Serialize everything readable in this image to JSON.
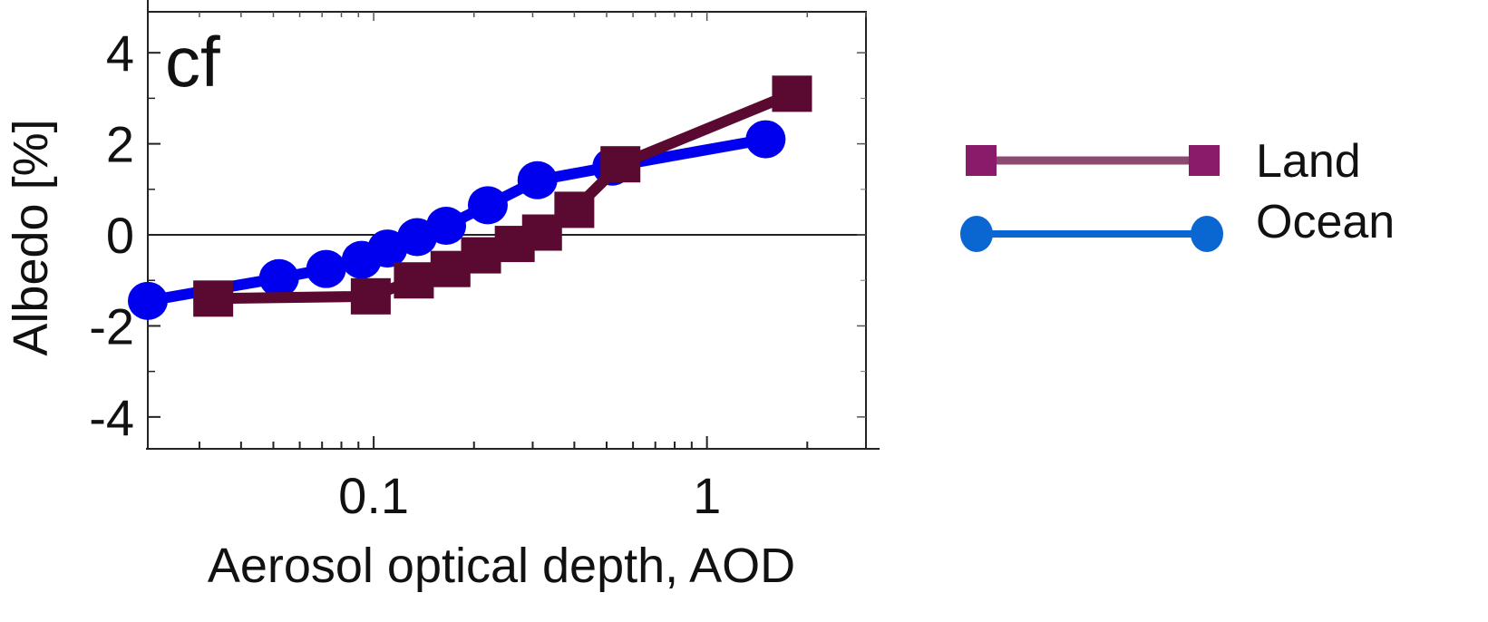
{
  "chart_data": {
    "type": "line",
    "panel_label": "cf",
    "xlabel": "Aerosol optical depth, AOD",
    "ylabel": "Albedo [%]",
    "xscale": "log",
    "xlim": [
      0.021,
      3
    ],
    "ylim": [
      -4.7,
      4.9
    ],
    "x_ticks": [
      {
        "value": 0.1,
        "label": "0.1"
      },
      {
        "value": 1,
        "label": "1"
      }
    ],
    "y_ticks": [
      {
        "value": 4,
        "label": "4"
      },
      {
        "value": 2,
        "label": "2"
      },
      {
        "value": 0,
        "label": "0"
      },
      {
        "value": -2,
        "label": "-2"
      },
      {
        "value": -4,
        "label": "-4"
      }
    ],
    "zero_line": true,
    "legend_position": "right",
    "series": [
      {
        "name": "Ocean",
        "color": "#0000ee",
        "legend_color": "#0a66d0",
        "marker": "circle",
        "x": [
          0.021,
          0.052,
          0.072,
          0.092,
          0.11,
          0.135,
          0.165,
          0.22,
          0.31,
          0.52,
          1.5
        ],
        "y": [
          -1.45,
          -0.95,
          -0.75,
          -0.55,
          -0.3,
          -0.05,
          0.2,
          0.65,
          1.2,
          1.5,
          2.1
        ]
      },
      {
        "name": "Land",
        "color": "#5a0a30",
        "legend_color": "#8a1a6a",
        "legend_line_color": "#8c4a72",
        "marker": "square",
        "x": [
          0.033,
          0.098,
          0.132,
          0.17,
          0.21,
          0.265,
          0.32,
          0.4,
          0.55,
          1.8
        ],
        "y": [
          -1.4,
          -1.35,
          -1.0,
          -0.75,
          -0.45,
          -0.2,
          0.05,
          0.55,
          1.55,
          3.1
        ]
      }
    ]
  }
}
